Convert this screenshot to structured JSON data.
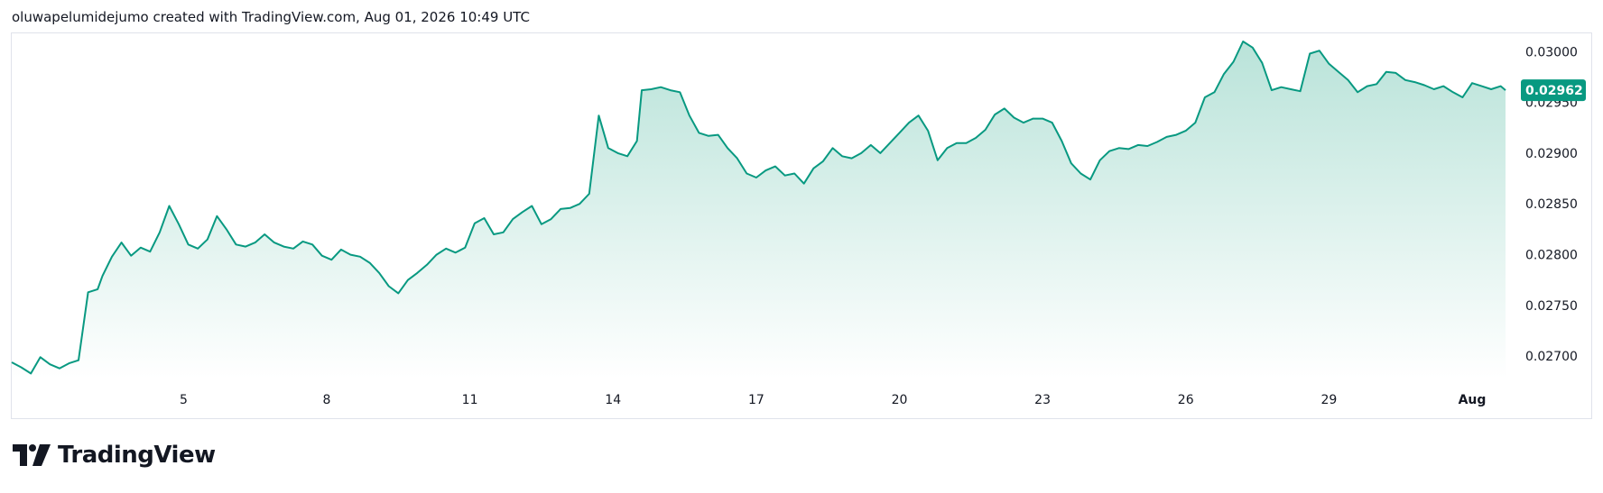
{
  "attribution": "oluwapelumidejumo created with TradingView.com, Aug 01, 2026 10:49 UTC",
  "brand": {
    "name": "TradingView",
    "icon": "tradingview-logo-icon"
  },
  "colors": {
    "line": "#089981",
    "area_top": "#b9e3d9",
    "area_bottom": "#ffffff",
    "badge": "#089981"
  },
  "last_price_label": "0.02962",
  "chart_data": {
    "type": "area",
    "x_tick_labels": [
      "5",
      "8",
      "11",
      "14",
      "17",
      "20",
      "23",
      "26",
      "29",
      "Aug"
    ],
    "x_tick_days": [
      5,
      8,
      11,
      14,
      17,
      20,
      23,
      26,
      29,
      32
    ],
    "y_tick_labels": [
      "0.03000",
      "0.02950",
      "0.02900",
      "0.02850",
      "0.02800",
      "0.02750",
      "0.02700"
    ],
    "y_tick_values": [
      0.03,
      0.0295,
      0.029,
      0.0285,
      0.028,
      0.0275,
      0.027
    ],
    "ylim": [
      0.02678,
      0.03018
    ],
    "xlim_days": [
      1.4,
      32.7
    ],
    "last_value": 0.02962,
    "x_days": [
      1.4,
      1.6,
      1.8,
      2.0,
      2.2,
      2.4,
      2.6,
      2.8,
      3.0,
      3.2,
      3.3,
      3.5,
      3.7,
      3.9,
      4.1,
      4.3,
      4.5,
      4.7,
      4.9,
      5.1,
      5.3,
      5.5,
      5.7,
      5.9,
      6.1,
      6.3,
      6.5,
      6.7,
      6.9,
      7.1,
      7.3,
      7.5,
      7.7,
      7.9,
      8.1,
      8.3,
      8.5,
      8.7,
      8.9,
      9.1,
      9.3,
      9.5,
      9.7,
      9.9,
      10.1,
      10.3,
      10.5,
      10.7,
      10.9,
      11.1,
      11.3,
      11.5,
      11.7,
      11.9,
      12.1,
      12.3,
      12.5,
      12.7,
      12.9,
      13.1,
      13.3,
      13.5,
      13.7,
      13.9,
      14.1,
      14.3,
      14.5,
      14.6,
      14.8,
      15.0,
      15.2,
      15.4,
      15.6,
      15.8,
      16.0,
      16.2,
      16.4,
      16.6,
      16.8,
      17.0,
      17.2,
      17.4,
      17.6,
      17.8,
      18.0,
      18.2,
      18.4,
      18.6,
      18.8,
      19.0,
      19.2,
      19.4,
      19.6,
      19.8,
      20.0,
      20.2,
      20.4,
      20.6,
      20.8,
      21.0,
      21.2,
      21.4,
      21.6,
      21.8,
      22.0,
      22.2,
      22.4,
      22.6,
      22.8,
      23.0,
      23.2,
      23.4,
      23.6,
      23.8,
      24.0,
      24.2,
      24.4,
      24.6,
      24.8,
      25.0,
      25.2,
      25.4,
      25.6,
      25.8,
      26.0,
      26.2,
      26.4,
      26.6,
      26.8,
      27.0,
      27.2,
      27.4,
      27.6,
      27.8,
      28.0,
      28.2,
      28.4,
      28.6,
      28.8,
      29.0,
      29.2,
      29.4,
      29.6,
      29.8,
      30.0,
      30.2,
      30.4,
      30.6,
      30.8,
      31.0,
      31.2,
      31.4,
      31.6,
      31.8,
      32.0,
      32.2,
      32.4,
      32.6,
      32.7
    ],
    "y_values": [
      0.02694,
      0.02689,
      0.02683,
      0.02699,
      0.02692,
      0.02688,
      0.02693,
      0.02696,
      0.02763,
      0.02766,
      0.02779,
      0.02798,
      0.02812,
      0.02799,
      0.02807,
      0.02803,
      0.02822,
      0.02848,
      0.0283,
      0.0281,
      0.02806,
      0.02815,
      0.02838,
      0.02825,
      0.0281,
      0.02808,
      0.02812,
      0.0282,
      0.02812,
      0.02808,
      0.02806,
      0.02813,
      0.0281,
      0.02799,
      0.02795,
      0.02805,
      0.028,
      0.02798,
      0.02792,
      0.02782,
      0.02769,
      0.02762,
      0.02775,
      0.02782,
      0.0279,
      0.028,
      0.02806,
      0.02802,
      0.02807,
      0.02831,
      0.02836,
      0.0282,
      0.02822,
      0.02835,
      0.02842,
      0.02848,
      0.0283,
      0.02835,
      0.02845,
      0.02846,
      0.0285,
      0.0286,
      0.02937,
      0.02905,
      0.029,
      0.02897,
      0.02912,
      0.02962,
      0.02963,
      0.02965,
      0.02962,
      0.0296,
      0.02937,
      0.0292,
      0.02917,
      0.02918,
      0.02905,
      0.02895,
      0.0288,
      0.02876,
      0.02883,
      0.02887,
      0.02878,
      0.0288,
      0.0287,
      0.02885,
      0.02892,
      0.02905,
      0.02897,
      0.02895,
      0.029,
      0.02908,
      0.029,
      0.0291,
      0.0292,
      0.0293,
      0.02937,
      0.02922,
      0.02893,
      0.02905,
      0.0291,
      0.0291,
      0.02915,
      0.02923,
      0.02938,
      0.02944,
      0.02935,
      0.0293,
      0.02934,
      0.02934,
      0.0293,
      0.02912,
      0.0289,
      0.0288,
      0.02874,
      0.02893,
      0.02902,
      0.02905,
      0.02904,
      0.02908,
      0.02907,
      0.02911,
      0.02916,
      0.02918,
      0.02922,
      0.0293,
      0.02955,
      0.0296,
      0.02978,
      0.0299,
      0.0301,
      0.03004,
      0.02989,
      0.02962,
      0.02965,
      0.02963,
      0.02961,
      0.02998,
      0.03001,
      0.02988,
      0.0298,
      0.02972,
      0.0296,
      0.02966,
      0.02968,
      0.0298,
      0.02979,
      0.02972,
      0.0297,
      0.02967,
      0.02963,
      0.02966,
      0.0296,
      0.02955,
      0.02969,
      0.02966,
      0.02963,
      0.02966,
      0.02962
    ]
  }
}
